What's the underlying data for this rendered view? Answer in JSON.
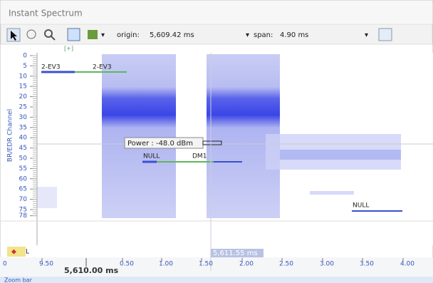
{
  "window": {
    "title": "Instant Spectrum"
  },
  "toolbar": {
    "origin_label": "origin:",
    "origin_value": "5,609.42 ms",
    "span_label": "span:",
    "span_value": "4.90 ms",
    "expander": "[+]"
  },
  "plot": {
    "y_axis_label": "BR/EDR Channel",
    "y_ticks": [
      0,
      5,
      10,
      15,
      20,
      25,
      30,
      35,
      40,
      45,
      50,
      55,
      60,
      65,
      70,
      75,
      78
    ],
    "packets": [
      "2-EV3",
      "2-EV3",
      "NULL",
      "DM1",
      "NULL"
    ],
    "tooltip": "Power   : -48.0 dBm",
    "cursor_label": "5,611.55 ms",
    "layer_label": "L"
  },
  "time_axis": {
    "edge_label": "0",
    "tick_labels": [
      "9.50",
      "0.50",
      "1.00",
      "1.50",
      "2.00",
      "2.50",
      "3.00",
      "3.50",
      "4.00"
    ],
    "base_label": "5,610.00 ms"
  },
  "zoom_bar": {
    "label": "Zoom bar"
  }
}
